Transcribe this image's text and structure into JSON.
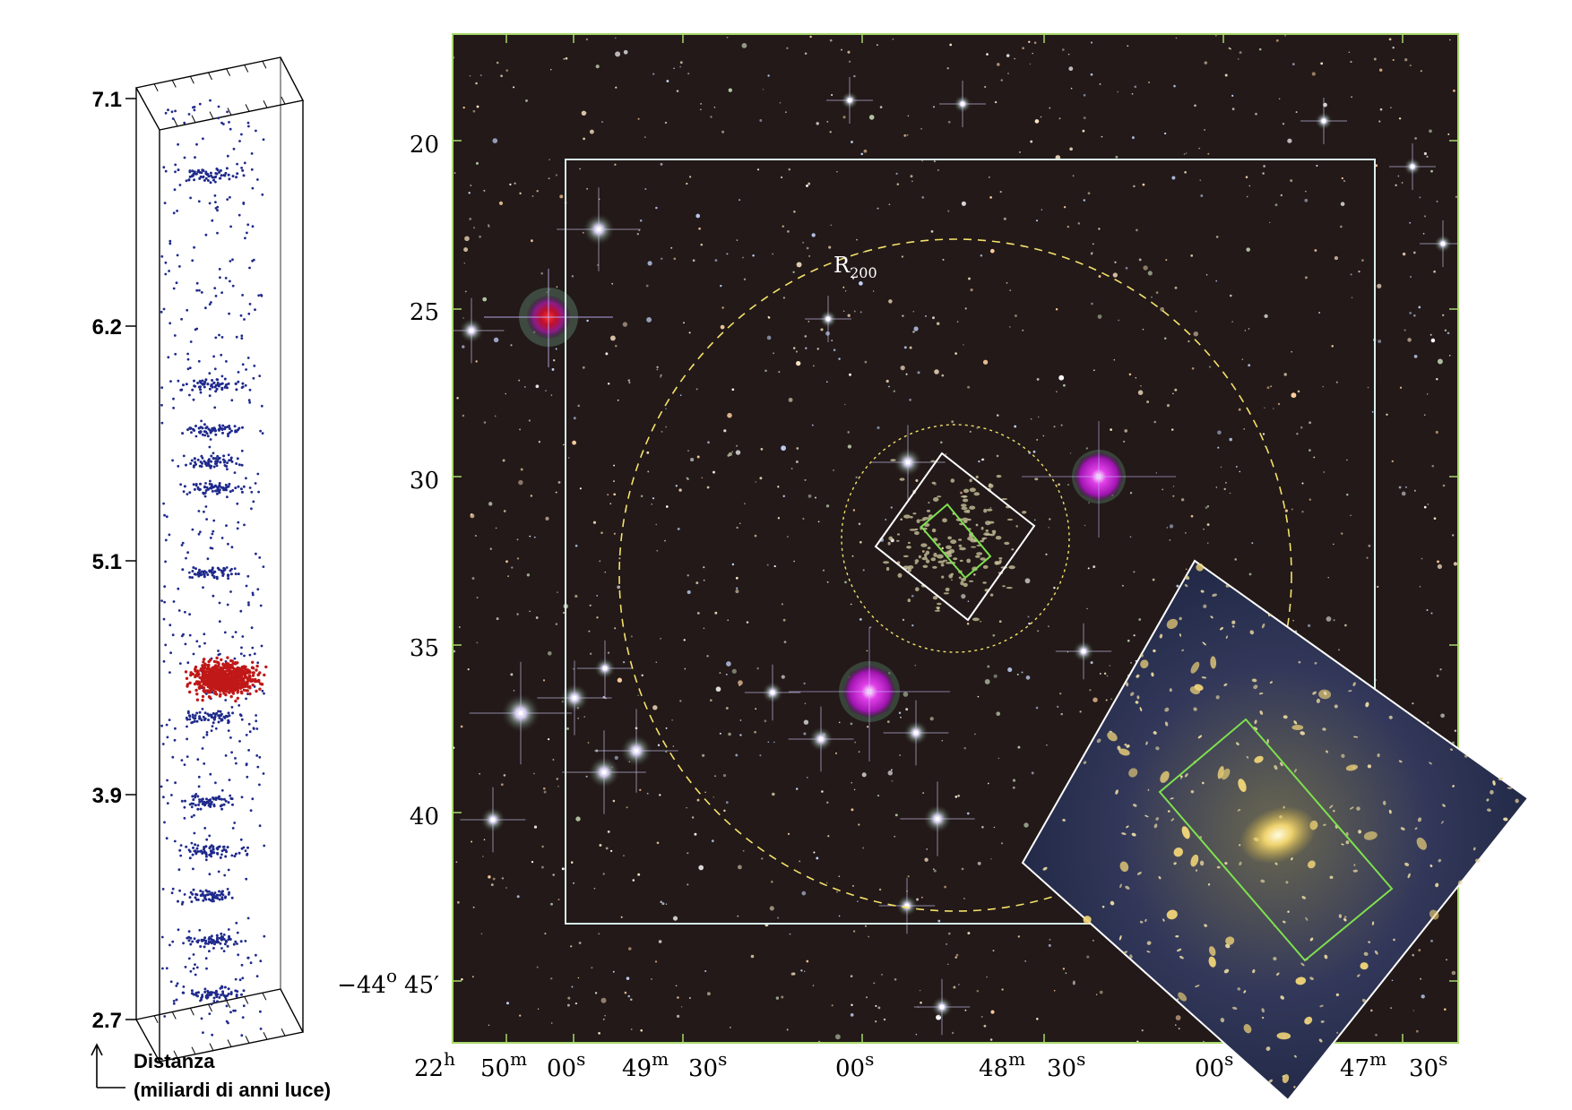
{
  "left_panel": {
    "distance_ticks": [
      "7.1",
      "6.2",
      "5.1",
      "3.9",
      "2.7"
    ],
    "axis_label_line1": "Distanza",
    "axis_label_line2": "(miliardi di anni luce)",
    "colors": {
      "foreground": "#1f2a8c",
      "cluster": "#c01818"
    }
  },
  "sky_image": {
    "dec_ticks": [
      "20",
      "25",
      "30",
      "35",
      "40"
    ],
    "dec_last": {
      "deg": "−44",
      "deg_unit": "o",
      "min": "45",
      "min_unit": "′"
    },
    "ra_labels": {
      "h22": "22",
      "h_unit": "h",
      "m50": "50",
      "m_unit": "m",
      "s00a": "00",
      "s_unit": "s",
      "m49": "49",
      "s30a": "30",
      "s00b": "00",
      "m48": "48",
      "s30b": "30",
      "s00c": "00",
      "m47": "47",
      "s30c": "30"
    },
    "r200_label": "R",
    "r200_sub": "200",
    "colors": {
      "frame": "#a8d86a",
      "outer_box": "#d8f0ec",
      "r200_circle": "#f5e16a",
      "inner_box": "#ffffff",
      "green_box": "#7ee04e",
      "star_magenta": "#c020c8"
    }
  }
}
